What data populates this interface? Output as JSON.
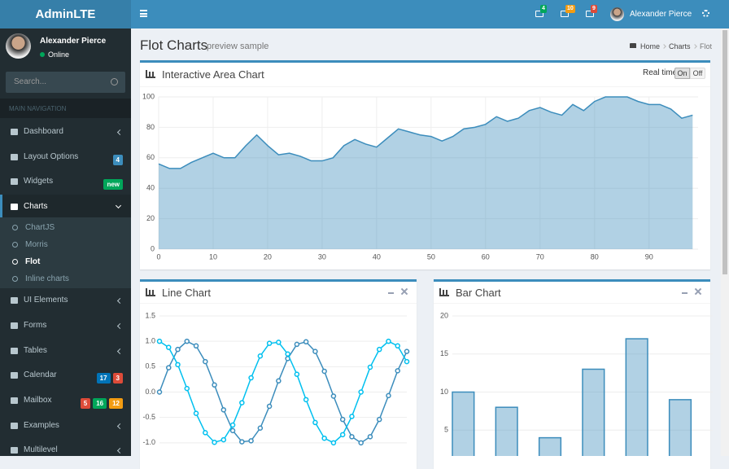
{
  "header": {
    "logo": "AdminLTE",
    "user": "Alexander Pierce",
    "badges": [
      {
        "text": "4",
        "color": "#00a65a"
      },
      {
        "text": "10",
        "color": "#f39c12"
      },
      {
        "text": "9",
        "color": "#dd4b39"
      }
    ]
  },
  "sidebar": {
    "user": "Alexander Pierce",
    "status": "Online",
    "search": "Search...",
    "nav_header": "MAIN NAVIGATION",
    "menu": [
      {
        "label": "Dashboard"
      },
      {
        "label": "Layout Options",
        "badges": [
          {
            "text": "4",
            "color": "#3c8dbc"
          }
        ]
      },
      {
        "label": "Widgets",
        "badges": [
          {
            "text": "new",
            "color": "#00a65a"
          }
        ]
      },
      {
        "label": "Charts",
        "submenu": [
          "ChartJS",
          "Morris",
          "Flot",
          "Inline charts"
        ]
      },
      {
        "label": "UI Elements"
      },
      {
        "label": "Forms"
      },
      {
        "label": "Tables"
      },
      {
        "label": "Calendar",
        "badges": [
          {
            "text": "17",
            "color": "#0073b7"
          },
          {
            "text": "3",
            "color": "#dd4b39"
          }
        ]
      },
      {
        "label": "Mailbox",
        "badges": [
          {
            "text": "5",
            "color": "#dd4b39"
          },
          {
            "text": "16",
            "color": "#00a65a"
          },
          {
            "text": "12",
            "color": "#f39c12"
          }
        ]
      },
      {
        "label": "Examples"
      },
      {
        "label": "Multilevel"
      }
    ]
  },
  "content": {
    "title": "Flot Charts",
    "subtitle": "preview sample",
    "breadcrumb": [
      "Home",
      "Charts",
      "Flot"
    ],
    "realtime": {
      "label": "Real time",
      "on": "On",
      "off": "Off"
    }
  },
  "chart_data": [
    {
      "type": "area",
      "title": "Interactive Area Chart",
      "color": "#3c8dbc",
      "grid": true,
      "x": [
        0,
        2,
        4,
        6,
        8,
        10,
        12,
        14,
        16,
        18,
        20,
        22,
        24,
        26,
        28,
        30,
        32,
        34,
        36,
        38,
        40,
        42,
        44,
        46,
        48,
        50,
        52,
        54,
        56,
        58,
        60,
        62,
        64,
        66,
        68,
        70,
        72,
        74,
        76,
        78,
        80,
        82,
        84,
        86,
        88,
        90,
        92,
        94,
        96,
        98
      ],
      "values": [
        56,
        53,
        53,
        57,
        60,
        63,
        60,
        60,
        68,
        75,
        68,
        62,
        63,
        61,
        58,
        58,
        60,
        68,
        72,
        69,
        67,
        73,
        79,
        77,
        75,
        74,
        71,
        74,
        79,
        80,
        82,
        87,
        84,
        86,
        91,
        93,
        90,
        88,
        95,
        91,
        97,
        100,
        100,
        100,
        97,
        95,
        95,
        92,
        86,
        88
      ],
      "xlim": [
        0,
        99
      ],
      "xticks": [
        0,
        10,
        20,
        30,
        40,
        50,
        60,
        70,
        80,
        90
      ],
      "ylim": [
        0,
        100
      ],
      "yticks": [
        0,
        20,
        40,
        60,
        80,
        100
      ]
    },
    {
      "type": "line",
      "title": "Line Chart",
      "grid": true,
      "x": [
        0,
        0.5,
        1,
        1.5,
        2,
        2.5,
        3,
        3.5,
        4,
        4.5,
        5,
        5.5,
        6,
        6.5,
        7,
        7.5,
        8,
        8.5,
        9,
        9.5,
        10,
        10.5,
        11,
        11.5,
        12,
        12.5,
        13,
        13.5
      ],
      "series": [
        {
          "color": "#3c8dbc",
          "values": [
            0,
            0.48,
            0.84,
            1.0,
            0.91,
            0.6,
            0.14,
            -0.35,
            -0.76,
            -0.98,
            -0.96,
            -0.71,
            -0.28,
            0.22,
            0.66,
            0.94,
            0.99,
            0.8,
            0.41,
            -0.08,
            -0.54,
            -0.88,
            -1.0,
            -0.88,
            -0.54,
            -0.07,
            0.42,
            0.8
          ]
        },
        {
          "color": "#00c0ef",
          "values": [
            1,
            0.88,
            0.54,
            0.07,
            -0.42,
            -0.8,
            -0.99,
            -0.94,
            -0.65,
            -0.21,
            0.28,
            0.71,
            0.96,
            0.98,
            0.75,
            0.35,
            -0.15,
            -0.6,
            -0.91,
            -1.0,
            -0.84,
            -0.48,
            0.0,
            0.49,
            0.84,
            1.0,
            0.91,
            0.6
          ]
        }
      ],
      "xlim": [
        0,
        13.5
      ],
      "ylim": [
        -1.5,
        1.5
      ],
      "yticks": [
        1.5,
        {
          "value": 1,
          "label": "1.0"
        },
        0.5,
        {
          "value": 0,
          "label": "0.0"
        },
        -0.5,
        {
          "value": -1,
          "label": "-1.0"
        }
      ]
    },
    {
      "type": "bar",
      "title": "Bar Chart",
      "color": "#3c8dbc",
      "grid": true,
      "values": [
        10,
        8,
        4,
        13,
        17,
        9
      ],
      "ylim": [
        0,
        20
      ],
      "yticks": [
        5,
        10,
        15,
        20
      ]
    }
  ]
}
